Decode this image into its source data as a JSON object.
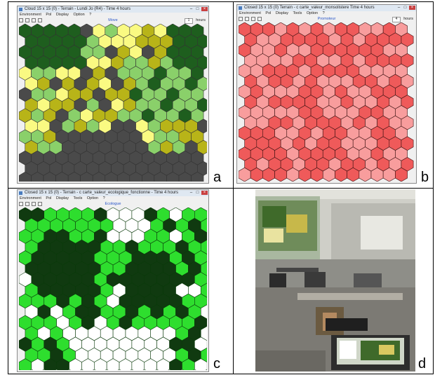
{
  "panels": {
    "a": {
      "letter": "a",
      "window": {
        "title": "Cloud 15 x 15 (0) - Terrain - Lundi Jo (R4) - Time 4 hours",
        "menu": [
          "Environment",
          "Pol",
          "Display",
          "Option",
          "?"
        ],
        "toolbar_center": "Move",
        "step_value": "1",
        "step_unit": "hours"
      }
    },
    "b": {
      "letter": "b",
      "window": {
        "title": "Closed 15 x 15 (0) Terrain - c carte_valeur_monsolistere Time 4 hours",
        "menu": [
          "Environment",
          "Pol",
          "Display",
          "Tools",
          "Option",
          "?"
        ],
        "toolbar_center": "Promoteur",
        "step_value": "4",
        "step_unit": "hours"
      }
    },
    "c": {
      "letter": "c",
      "window": {
        "title": "Closed 15 x 15 (0) - Terrain - c carte_valeur_ecologique_fonctionne - Time 4 hours",
        "menu": [
          "Environment",
          "Pol",
          "Display",
          "Tools",
          "Option",
          "?"
        ],
        "toolbar_center": "Ecologue",
        "step_value": "",
        "step_unit": ""
      }
    },
    "d": {
      "letter": "d"
    }
  },
  "colors": {
    "a_dark_green": "#1e5e1e",
    "a_light_green": "#8ad06a",
    "a_olive": "#b8b418",
    "a_yellow": "#fafa82",
    "a_grey": "#4a4a4a",
    "b_red": "#ef5a5a",
    "b_pink": "#f89d9d",
    "c_bright_green": "#2ede2e",
    "c_dark_green": "#103a10",
    "c_white": "#ffffff"
  }
}
